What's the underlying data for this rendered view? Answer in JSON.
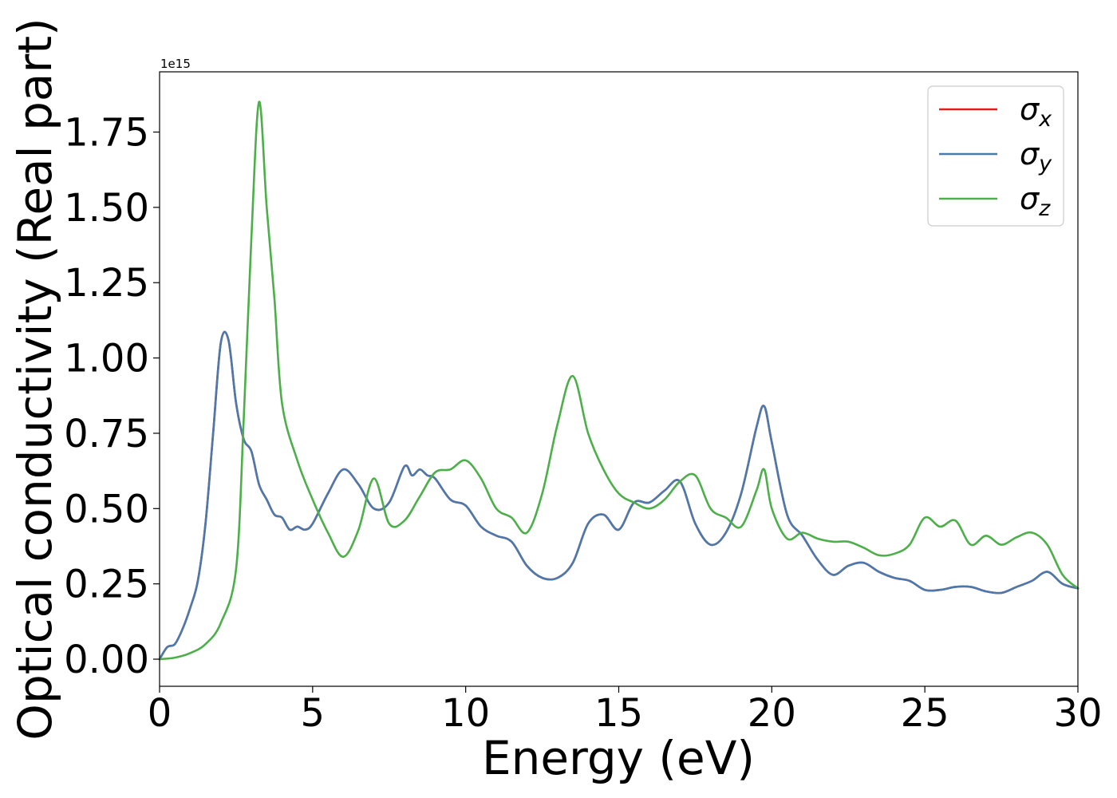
{
  "chart_data": {
    "type": "line",
    "title": "",
    "xlabel": "Energy (eV)",
    "ylabel": "Optical conductivity (Real part)",
    "y_offset_label": "1e15",
    "xlim": [
      0,
      30
    ],
    "ylim": [
      -0.09,
      1.95
    ],
    "x_ticks": [
      0,
      5,
      10,
      15,
      20,
      25,
      30
    ],
    "x_tick_labels": [
      "0",
      "5",
      "10",
      "15",
      "20",
      "25",
      "30"
    ],
    "y_ticks": [
      0.0,
      0.25,
      0.5,
      0.75,
      1.0,
      1.25,
      1.5,
      1.75
    ],
    "y_tick_labels": [
      "0.00",
      "0.25",
      "0.50",
      "0.75",
      "1.00",
      "1.25",
      "1.50",
      "1.75"
    ],
    "grid": false,
    "legend_position": "top-right",
    "series": [
      {
        "name": "σx",
        "legend_base": "σ",
        "legend_sub": "x",
        "color": "#e41a1c",
        "x": [
          0,
          0.25,
          0.5,
          0.75,
          1.0,
          1.25,
          1.5,
          1.75,
          2.0,
          2.25,
          2.5,
          2.75,
          3.0,
          3.25,
          3.5,
          3.75,
          4.0,
          4.25,
          4.5,
          4.75,
          5.0,
          5.5,
          6.0,
          6.5,
          7.0,
          7.5,
          8.0,
          8.25,
          8.5,
          8.75,
          9.0,
          9.5,
          10.0,
          10.5,
          11.0,
          11.5,
          12.0,
          12.5,
          13.0,
          13.5,
          14.0,
          14.5,
          15.0,
          15.5,
          16.0,
          16.5,
          17.0,
          17.5,
          18.0,
          18.5,
          19.0,
          19.5,
          19.75,
          20.0,
          20.5,
          21.0,
          21.5,
          22.0,
          22.5,
          23.0,
          23.5,
          24.0,
          24.5,
          25.0,
          25.5,
          26.0,
          26.5,
          27.0,
          27.5,
          28.0,
          28.5,
          29.0,
          29.5,
          30.0
        ],
        "y": [
          0.0,
          0.04,
          0.05,
          0.1,
          0.17,
          0.26,
          0.45,
          0.75,
          1.05,
          1.06,
          0.85,
          0.73,
          0.69,
          0.58,
          0.53,
          0.48,
          0.47,
          0.43,
          0.44,
          0.43,
          0.45,
          0.55,
          0.63,
          0.58,
          0.5,
          0.52,
          0.64,
          0.61,
          0.63,
          0.61,
          0.6,
          0.53,
          0.51,
          0.44,
          0.41,
          0.39,
          0.31,
          0.27,
          0.27,
          0.32,
          0.45,
          0.48,
          0.43,
          0.52,
          0.52,
          0.56,
          0.59,
          0.45,
          0.38,
          0.42,
          0.55,
          0.77,
          0.84,
          0.72,
          0.48,
          0.41,
          0.33,
          0.28,
          0.31,
          0.32,
          0.29,
          0.27,
          0.26,
          0.23,
          0.23,
          0.24,
          0.24,
          0.225,
          0.22,
          0.24,
          0.26,
          0.29,
          0.25,
          0.235
        ]
      },
      {
        "name": "σy",
        "legend_base": "σ",
        "legend_sub": "y",
        "color": "#4a7aad",
        "x": [
          0,
          0.25,
          0.5,
          0.75,
          1.0,
          1.25,
          1.5,
          1.75,
          2.0,
          2.25,
          2.5,
          2.75,
          3.0,
          3.25,
          3.5,
          3.75,
          4.0,
          4.25,
          4.5,
          4.75,
          5.0,
          5.5,
          6.0,
          6.5,
          7.0,
          7.5,
          8.0,
          8.25,
          8.5,
          8.75,
          9.0,
          9.5,
          10.0,
          10.5,
          11.0,
          11.5,
          12.0,
          12.5,
          13.0,
          13.5,
          14.0,
          14.5,
          15.0,
          15.5,
          16.0,
          16.5,
          17.0,
          17.5,
          18.0,
          18.5,
          19.0,
          19.5,
          19.75,
          20.0,
          20.5,
          21.0,
          21.5,
          22.0,
          22.5,
          23.0,
          23.5,
          24.0,
          24.5,
          25.0,
          25.5,
          26.0,
          26.5,
          27.0,
          27.5,
          28.0,
          28.5,
          29.0,
          29.5,
          30.0
        ],
        "y": [
          0.0,
          0.04,
          0.05,
          0.1,
          0.17,
          0.26,
          0.45,
          0.75,
          1.05,
          1.06,
          0.85,
          0.73,
          0.69,
          0.58,
          0.53,
          0.48,
          0.47,
          0.43,
          0.44,
          0.43,
          0.45,
          0.55,
          0.63,
          0.58,
          0.5,
          0.52,
          0.64,
          0.61,
          0.63,
          0.61,
          0.6,
          0.53,
          0.51,
          0.44,
          0.41,
          0.39,
          0.31,
          0.27,
          0.27,
          0.32,
          0.45,
          0.48,
          0.43,
          0.52,
          0.52,
          0.56,
          0.59,
          0.45,
          0.38,
          0.42,
          0.55,
          0.77,
          0.84,
          0.72,
          0.48,
          0.41,
          0.33,
          0.28,
          0.31,
          0.32,
          0.29,
          0.27,
          0.26,
          0.23,
          0.23,
          0.24,
          0.24,
          0.225,
          0.22,
          0.24,
          0.26,
          0.29,
          0.25,
          0.235
        ]
      },
      {
        "name": "σz",
        "legend_base": "σ",
        "legend_sub": "z",
        "color": "#4daf4a",
        "x": [
          0,
          0.5,
          1.0,
          1.5,
          2.0,
          2.5,
          2.75,
          3.0,
          3.25,
          3.5,
          3.75,
          4.0,
          4.5,
          5.0,
          5.5,
          6.0,
          6.5,
          7.0,
          7.5,
          8.0,
          8.5,
          9.0,
          9.5,
          10.0,
          10.5,
          11.0,
          11.5,
          12.0,
          12.5,
          13.0,
          13.5,
          14.0,
          14.5,
          15.0,
          15.5,
          16.0,
          16.5,
          17.0,
          17.5,
          18.0,
          18.5,
          19.0,
          19.5,
          19.75,
          20.0,
          20.5,
          21.0,
          21.5,
          22.0,
          22.5,
          23.0,
          23.5,
          24.0,
          24.5,
          25.0,
          25.5,
          26.0,
          26.5,
          27.0,
          27.5,
          28.0,
          28.5,
          29.0,
          29.5,
          30.0
        ],
        "y": [
          0.0,
          0.005,
          0.02,
          0.05,
          0.12,
          0.3,
          0.8,
          1.4,
          1.85,
          1.5,
          1.2,
          0.85,
          0.66,
          0.53,
          0.42,
          0.34,
          0.43,
          0.6,
          0.45,
          0.46,
          0.54,
          0.62,
          0.63,
          0.66,
          0.6,
          0.5,
          0.47,
          0.42,
          0.55,
          0.78,
          0.94,
          0.75,
          0.63,
          0.55,
          0.52,
          0.5,
          0.53,
          0.59,
          0.61,
          0.5,
          0.47,
          0.44,
          0.56,
          0.63,
          0.5,
          0.4,
          0.42,
          0.4,
          0.39,
          0.39,
          0.37,
          0.345,
          0.35,
          0.38,
          0.47,
          0.44,
          0.46,
          0.38,
          0.41,
          0.38,
          0.405,
          0.42,
          0.38,
          0.28,
          0.235
        ]
      }
    ]
  }
}
